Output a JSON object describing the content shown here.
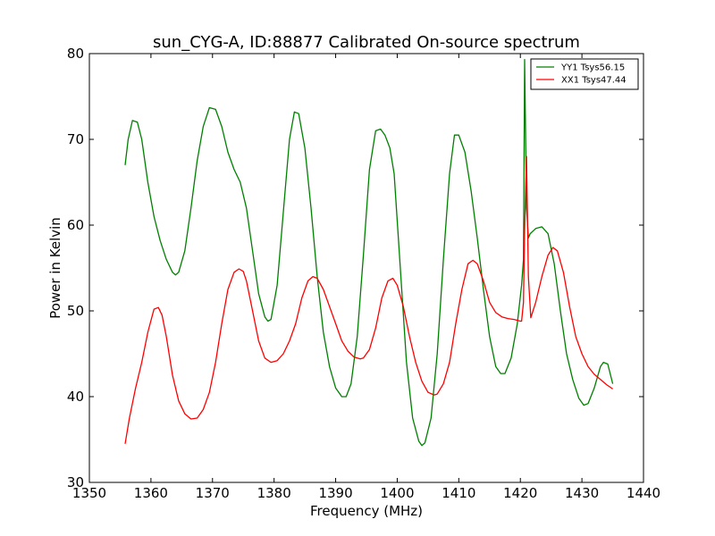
{
  "chart_data": {
    "type": "line",
    "title": "sun_CYG-A, ID:88877 Calibrated On-source spectrum",
    "xlabel": "Frequency (MHz)",
    "ylabel": "Power in Kelvin",
    "xlim": [
      1350,
      1440
    ],
    "ylim": [
      30,
      80
    ],
    "xticks": [
      "1350",
      "1360",
      "1370",
      "1380",
      "1390",
      "1400",
      "1410",
      "1420",
      "1430",
      "1440"
    ],
    "yticks": [
      "30",
      "40",
      "50",
      "60",
      "70",
      "80"
    ],
    "grid": false,
    "legend_position": "top-right",
    "series": [
      {
        "name": "YY1 Tsys56.15",
        "color": "#008000",
        "x": [
          1355.8,
          1356.3,
          1357,
          1357.8,
          1358.5,
          1359.5,
          1360.5,
          1361.5,
          1362.5,
          1363.5,
          1364,
          1364.5,
          1365.5,
          1366.5,
          1367.5,
          1368.5,
          1369.5,
          1370.5,
          1371.5,
          1372.5,
          1373.5,
          1374.5,
          1375.5,
          1376.5,
          1377.5,
          1378.5,
          1379,
          1379.5,
          1380.5,
          1381.5,
          1382.5,
          1383.3,
          1384,
          1385,
          1386,
          1387,
          1388,
          1389,
          1390,
          1391,
          1391.7,
          1392.5,
          1393.5,
          1394.5,
          1395.5,
          1396.5,
          1397.3,
          1398,
          1398.8,
          1399.5,
          1400.5,
          1401.5,
          1402.5,
          1403.5,
          1404,
          1404.5,
          1405.5,
          1406.5,
          1407.5,
          1408.5,
          1409.3,
          1410,
          1411,
          1412,
          1413,
          1414,
          1415,
          1416,
          1416.8,
          1417.5,
          1418.5,
          1419.5,
          1420.2,
          1420.5,
          1420.7,
          1421,
          1421.3,
          1421.6,
          1422.5,
          1423.5,
          1424.5,
          1425.5,
          1426.5,
          1427.5,
          1428.5,
          1429.5,
          1430.3,
          1431,
          1432,
          1433,
          1433.5,
          1434.2,
          1435
        ],
        "values": [
          67,
          70,
          72.2,
          72,
          70,
          65,
          61,
          58.2,
          56,
          54.5,
          54.2,
          54.5,
          57,
          62,
          67.5,
          71.5,
          73.7,
          73.5,
          71.5,
          68.5,
          66.5,
          65,
          62,
          57,
          52,
          49.3,
          48.8,
          49,
          53,
          61.5,
          70,
          73.2,
          73,
          69,
          62,
          54,
          47.5,
          43.5,
          41,
          40,
          40,
          41.5,
          47,
          56.5,
          66.5,
          71,
          71.2,
          70.5,
          69,
          66,
          55,
          44,
          37.5,
          34.8,
          34.3,
          34.6,
          37.5,
          45,
          56,
          66,
          70.5,
          70.5,
          68.5,
          64,
          58.5,
          52.5,
          47,
          43.5,
          42.7,
          42.7,
          44.5,
          48.5,
          53,
          56,
          79.3,
          62,
          58.5,
          59,
          59.6,
          59.8,
          59,
          55.5,
          50,
          45,
          42,
          39.8,
          39,
          39.2,
          41,
          43.5,
          44,
          43.8,
          41.5
        ]
      },
      {
        "name": "XX1 Tsys47.44",
        "color": "#ff0000",
        "x": [
          1355.8,
          1356.5,
          1357.5,
          1358.5,
          1359.5,
          1360.5,
          1361.2,
          1361.8,
          1362.5,
          1363.5,
          1364.5,
          1365.5,
          1366.5,
          1367.5,
          1368.5,
          1369.5,
          1370.5,
          1371.5,
          1372.5,
          1373.5,
          1374.3,
          1375,
          1375.5,
          1376.5,
          1377.5,
          1378.5,
          1379.5,
          1380.5,
          1381.5,
          1382.5,
          1383.5,
          1384.5,
          1385.5,
          1386.3,
          1387,
          1388,
          1389,
          1390,
          1391,
          1392,
          1393,
          1394,
          1394.5,
          1395.5,
          1396.5,
          1397.5,
          1398.5,
          1399.3,
          1400,
          1401,
          1402,
          1403,
          1404,
          1405,
          1406,
          1406.5,
          1407.5,
          1408.5,
          1409.5,
          1410.5,
          1411.5,
          1412.3,
          1413,
          1414,
          1415,
          1416,
          1417,
          1418,
          1419,
          1420,
          1420.2,
          1420.5,
          1420.7,
          1421,
          1421.3,
          1421.7,
          1422.5,
          1423.5,
          1424.5,
          1425.3,
          1426,
          1427,
          1428,
          1429,
          1430,
          1431,
          1432,
          1433,
          1434,
          1435
        ],
        "values": [
          34.5,
          37.5,
          41,
          44,
          47.5,
          50.2,
          50.4,
          49.5,
          47,
          42.5,
          39.5,
          38,
          37.4,
          37.5,
          38.5,
          40.5,
          44,
          48.5,
          52.5,
          54.5,
          54.9,
          54.6,
          53.5,
          50,
          46.5,
          44.5,
          44,
          44.2,
          45,
          46.5,
          48.5,
          51.5,
          53.5,
          54,
          53.8,
          52.5,
          50.5,
          48.5,
          46.5,
          45.3,
          44.6,
          44.4,
          44.5,
          45.5,
          48,
          51.5,
          53.5,
          53.8,
          53,
          50.5,
          47,
          44,
          41.8,
          40.5,
          40.2,
          40.3,
          41.5,
          44,
          48.5,
          52.5,
          55.5,
          55.9,
          55.5,
          53.5,
          51,
          49.8,
          49.3,
          49.1,
          49,
          48.8,
          48.8,
          51,
          59.5,
          68,
          54,
          49.2,
          51,
          54,
          56.5,
          57.4,
          57,
          54.5,
          50.5,
          47,
          45,
          43.5,
          42.6,
          42,
          41.4,
          40.9
        ]
      }
    ]
  }
}
